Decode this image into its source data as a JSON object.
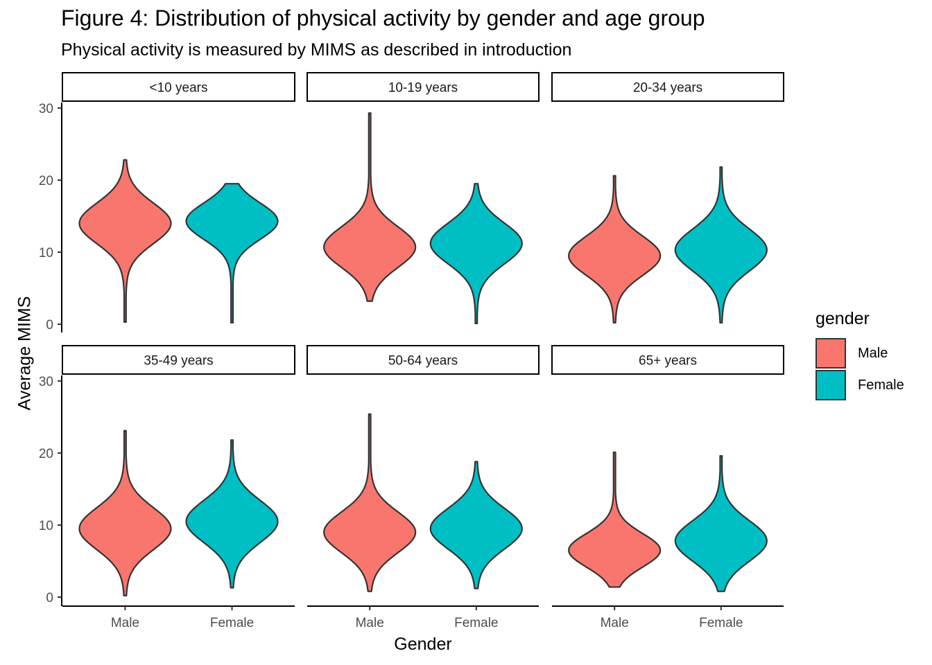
{
  "title": "Figure 4: Distribution of physical activity by gender and age group",
  "subtitle": "Physical activity is measured by MIMS as described in introduction",
  "colors": {
    "male": "#F8766D",
    "female": "#00BFC4",
    "outline": "#333333"
  },
  "legend": {
    "title": "gender",
    "items": [
      {
        "label": "Male",
        "color": "#F8766D"
      },
      {
        "label": "Female",
        "color": "#00BFC4"
      }
    ]
  },
  "chart_data": {
    "type": "violin",
    "xlabel": "Gender",
    "ylabel": "Average MIMS",
    "ylim": [
      0,
      30
    ],
    "yticks": [
      0,
      10,
      20,
      30
    ],
    "categories": [
      "Male",
      "Female"
    ],
    "legend_position": "right",
    "grid": false,
    "panels": [
      {
        "label": "<10 years",
        "violins": [
          {
            "group": "Male",
            "min": 0.3,
            "max": 22.8,
            "mode": 14.0,
            "spread": 2.8
          },
          {
            "group": "Female",
            "min": 0.2,
            "max": 19.5,
            "mode": 14.3,
            "spread": 2.5
          }
        ]
      },
      {
        "label": "10-19 years",
        "violins": [
          {
            "group": "Male",
            "min": 3.2,
            "max": 29.3,
            "mode": 10.7,
            "spread": 2.8
          },
          {
            "group": "Female",
            "min": 0.1,
            "max": 19.5,
            "mode": 11.2,
            "spread": 2.8
          }
        ]
      },
      {
        "label": "20-34 years",
        "violins": [
          {
            "group": "Male",
            "min": 0.2,
            "max": 20.6,
            "mode": 9.5,
            "spread": 2.7
          },
          {
            "group": "Female",
            "min": 0.2,
            "max": 21.8,
            "mode": 10.3,
            "spread": 2.9
          }
        ]
      },
      {
        "label": "35-49 years",
        "violins": [
          {
            "group": "Male",
            "min": 0.2,
            "max": 23.1,
            "mode": 9.5,
            "spread": 2.9
          },
          {
            "group": "Female",
            "min": 1.3,
            "max": 21.8,
            "mode": 10.5,
            "spread": 2.9
          }
        ]
      },
      {
        "label": "50-64 years",
        "violins": [
          {
            "group": "Male",
            "min": 0.8,
            "max": 25.4,
            "mode": 9.0,
            "spread": 2.8
          },
          {
            "group": "Female",
            "min": 1.2,
            "max": 18.8,
            "mode": 9.5,
            "spread": 2.8
          }
        ]
      },
      {
        "label": "65+ years",
        "violins": [
          {
            "group": "Male",
            "min": 1.4,
            "max": 20.1,
            "mode": 6.5,
            "spread": 2.3
          },
          {
            "group": "Female",
            "min": 0.8,
            "max": 19.6,
            "mode": 7.8,
            "spread": 2.8
          }
        ]
      }
    ]
  }
}
